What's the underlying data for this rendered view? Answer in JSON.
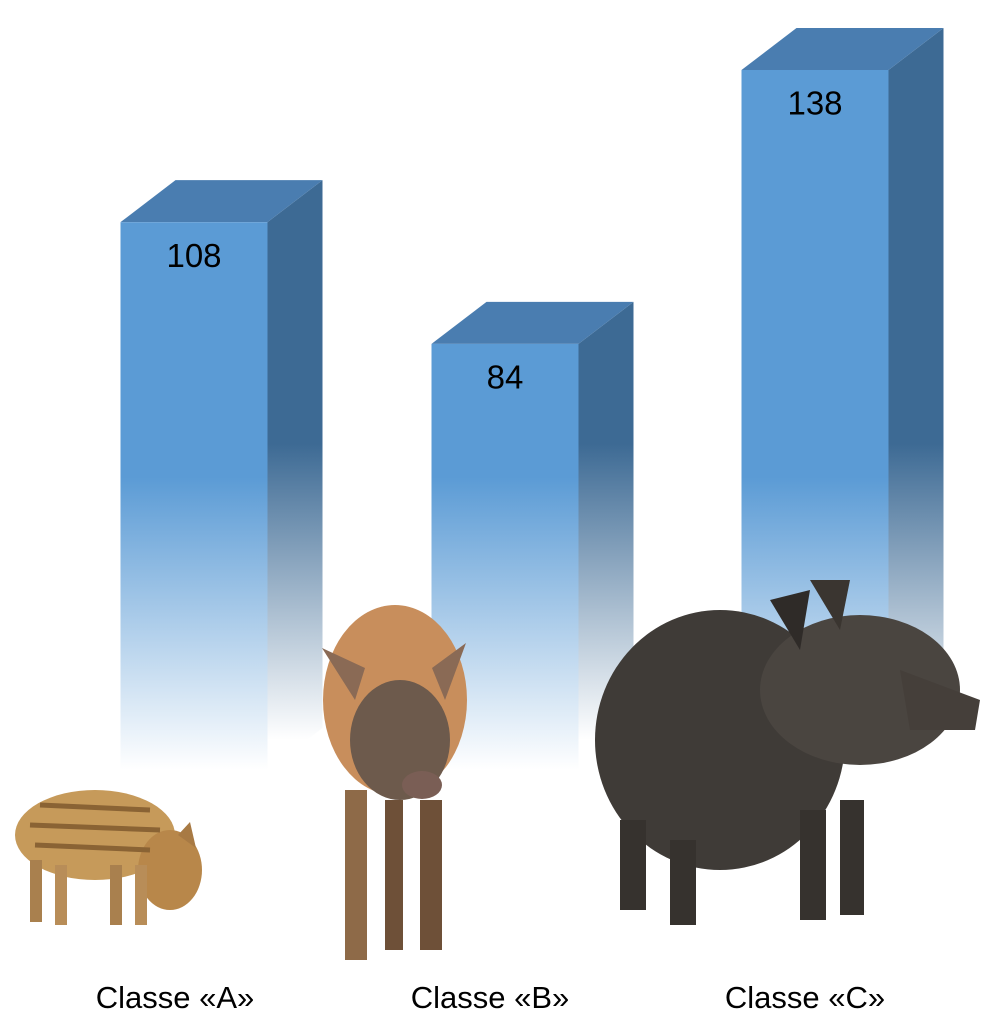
{
  "chart_data": {
    "type": "bar3d",
    "categories": [
      "Classe «A»",
      "Classe «B»",
      "Classe «C»"
    ],
    "values": [
      108,
      84,
      138
    ],
    "color": "#5b9bd5",
    "side_color": "#3d6a94",
    "top_color": "#4a7db0"
  }
}
